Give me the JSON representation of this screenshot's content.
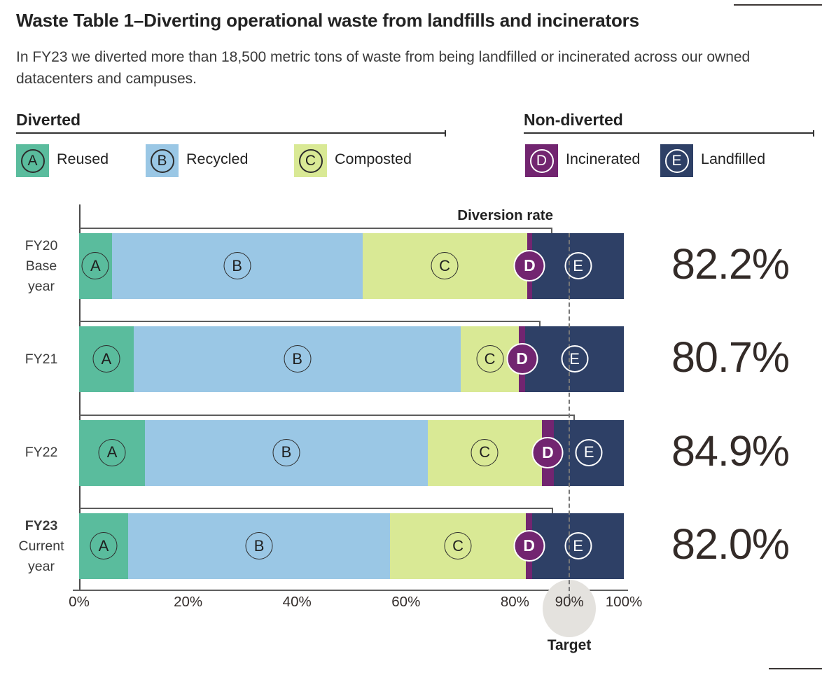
{
  "page": {
    "title": "Waste Table 1–Diverting operational waste from landfills and incinerators",
    "subtitle": "In FY23 we diverted more than 18,500 metric tons of waste from being landfilled or incinerated across our owned datacenters and campuses."
  },
  "legend": {
    "groups": [
      {
        "label": "Diverted",
        "items": [
          {
            "key": "A",
            "label": "Reused"
          },
          {
            "key": "B",
            "label": "Recycled"
          },
          {
            "key": "C",
            "label": "Composted"
          }
        ]
      },
      {
        "label": "Non-diverted",
        "items": [
          {
            "key": "D",
            "label": "Incinerated"
          },
          {
            "key": "E",
            "label": "Landfilled"
          }
        ]
      }
    ]
  },
  "chart_data": {
    "type": "bar",
    "stacked": true,
    "orientation": "horizontal",
    "annotation": "Diversion rate",
    "categories": [
      "FY20 Base year",
      "FY21",
      "FY22",
      "FY23 Current year"
    ],
    "series": [
      {
        "key": "A",
        "name": "Reused",
        "values": [
          6.0,
          10.0,
          12.1,
          9.0
        ]
      },
      {
        "key": "B",
        "name": "Recycled",
        "values": [
          46.0,
          60.1,
          51.9,
          48.1
        ]
      },
      {
        "key": "C",
        "name": "Composted",
        "values": [
          30.2,
          10.6,
          20.9,
          24.9
        ]
      },
      {
        "key": "D",
        "name": "Incinerated",
        "values": [
          1.0,
          1.2,
          2.3,
          1.2
        ]
      },
      {
        "key": "E",
        "name": "Landfilled",
        "values": [
          16.8,
          18.1,
          12.8,
          16.8
        ]
      }
    ],
    "rows": [
      {
        "label_lines": [
          "FY20",
          "Base",
          "year"
        ],
        "bold_first": false,
        "rate": "82.2%",
        "indicator_end_pct": 86.9
      },
      {
        "label_lines": [
          "FY21"
        ],
        "bold_first": false,
        "rate": "80.7%",
        "indicator_end_pct": 84.7
      },
      {
        "label_lines": [
          "FY22"
        ],
        "bold_first": false,
        "rate": "84.9%",
        "indicator_end_pct": 91.0
      },
      {
        "label_lines": [
          "FY23",
          "Current",
          "year"
        ],
        "bold_first": true,
        "rate": "82.0%",
        "indicator_end_pct": 87.0
      }
    ],
    "x_axis": {
      "range": [
        0,
        100
      ],
      "ticks": [
        {
          "label": "0%",
          "value": 0
        },
        {
          "label": "20%",
          "value": 20
        },
        {
          "label": "40%",
          "value": 40
        },
        {
          "label": "60%",
          "value": 60
        },
        {
          "label": "80%",
          "value": 80
        },
        {
          "label": "90%",
          "value": 90
        },
        {
          "label": "100%",
          "value": 100
        }
      ]
    },
    "target": {
      "value": 90,
      "label": "Target"
    }
  },
  "colors": {
    "A": "#5abc9d",
    "B": "#9ac7e5",
    "C": "#d9e995",
    "D": "#722570",
    "E": "#2e4066",
    "target_circle": "#e4e2de"
  }
}
